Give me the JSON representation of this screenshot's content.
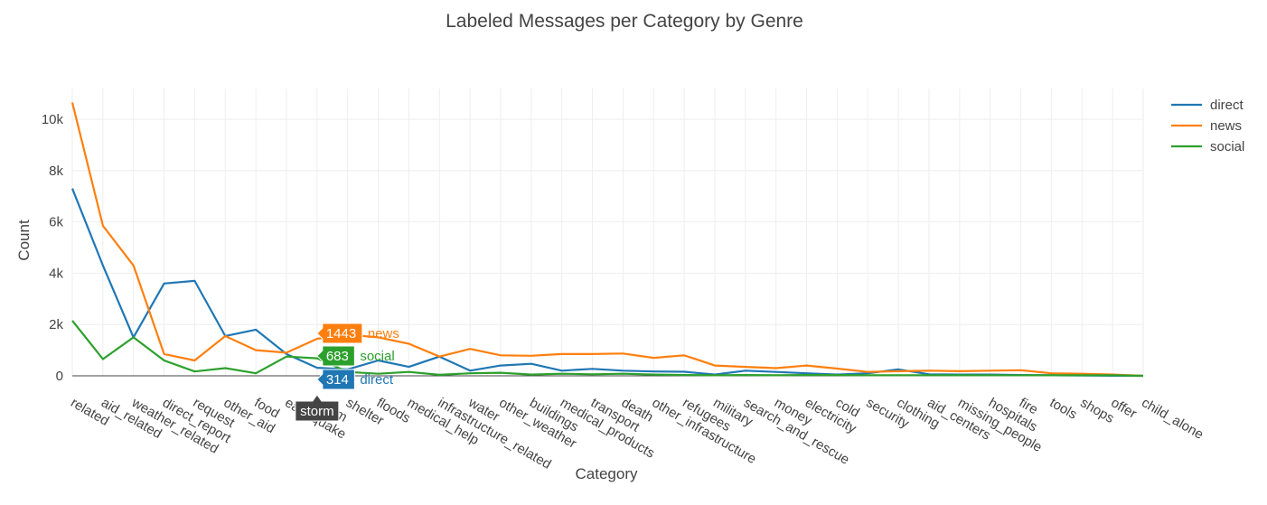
{
  "chart_data": {
    "type": "line",
    "title": "Labeled Messages per Category by Genre",
    "xlabel": "Category",
    "ylabel": "Count",
    "ylim": [
      0,
      11000
    ],
    "y_ticks": [
      0,
      2000,
      4000,
      6000,
      8000,
      10000
    ],
    "y_tick_labels": [
      "0",
      "2k",
      "4k",
      "6k",
      "8k",
      "10k"
    ],
    "grid": true,
    "legend_position": "top-right",
    "categories": [
      "related",
      "aid_related",
      "weather_related",
      "direct_report",
      "request",
      "other_aid",
      "food",
      "earthquake",
      "storm",
      "shelter",
      "floods",
      "medical_help",
      "infrastructure_related",
      "water",
      "other_weather",
      "buildings",
      "medical_products",
      "transport",
      "death",
      "other_infrastructure",
      "refugees",
      "military",
      "search_and_rescue",
      "money",
      "electricity",
      "cold",
      "security",
      "clothing",
      "aid_centers",
      "missing_people",
      "hospitals",
      "fire",
      "tools",
      "shops",
      "offer",
      "child_alone"
    ],
    "series": [
      {
        "name": "direct",
        "color": "#1f77b4",
        "values": [
          7300,
          4300,
          1500,
          3600,
          3700,
          1550,
          1800,
          850,
          314,
          250,
          600,
          350,
          750,
          200,
          400,
          470,
          200,
          270,
          200,
          170,
          160,
          50,
          200,
          150,
          100,
          50,
          100,
          250,
          60,
          50,
          50,
          30,
          20,
          10,
          5,
          0
        ]
      },
      {
        "name": "news",
        "color": "#ff7f0e",
        "values": [
          10650,
          5850,
          4300,
          850,
          600,
          1550,
          1000,
          900,
          1443,
          1600,
          1500,
          1250,
          750,
          1050,
          800,
          780,
          850,
          850,
          870,
          700,
          800,
          400,
          350,
          300,
          400,
          280,
          150,
          180,
          200,
          180,
          200,
          220,
          100,
          80,
          50,
          0
        ]
      },
      {
        "name": "social",
        "color": "#2ca02c",
        "values": [
          2150,
          650,
          1500,
          600,
          170,
          300,
          100,
          750,
          683,
          150,
          80,
          150,
          40,
          100,
          120,
          50,
          80,
          60,
          80,
          50,
          30,
          20,
          30,
          20,
          30,
          30,
          20,
          20,
          20,
          20,
          20,
          20,
          20,
          20,
          20,
          0
        ]
      }
    ],
    "hover": {
      "category": "storm",
      "labels": [
        {
          "series": "news",
          "value": "1443",
          "name": "news"
        },
        {
          "series": "social",
          "value": "683",
          "name": "social"
        },
        {
          "series": "direct",
          "value": "314",
          "name": "direct"
        }
      ]
    }
  }
}
